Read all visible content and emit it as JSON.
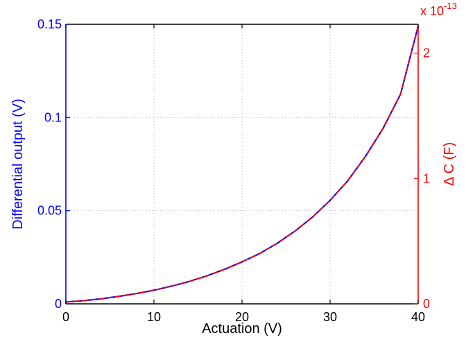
{
  "chart_data": {
    "type": "line",
    "title": "",
    "xlabel": "Actuation (V)",
    "ylabel_left": "Differential output (V)",
    "ylabel_right": "Δ C (F)",
    "right_axis_multiplier": "x 10",
    "right_axis_exponent": "-13",
    "xlim": [
      0,
      40
    ],
    "ylim_left": [
      0,
      0.15
    ],
    "ylim_right": [
      0,
      2.23
    ],
    "x_ticks": [
      0,
      10,
      20,
      30,
      40
    ],
    "x_tick_labels": [
      "0",
      "10",
      "20",
      "30",
      "40"
    ],
    "y_left_ticks": [
      0,
      0.05,
      0.1,
      0.15
    ],
    "y_left_tick_labels": [
      "0",
      "0.05",
      "0.1",
      "0.15"
    ],
    "y_right_ticks": [
      0,
      1,
      2
    ],
    "y_right_tick_labels": [
      "0",
      "1",
      "2"
    ],
    "grid": true,
    "legend": "none",
    "colors": {
      "left_axis": "#0000ff",
      "right_axis": "#ff0000",
      "frame": "#000000"
    },
    "series": [
      {
        "axis": "left",
        "color": "#0000ff",
        "style": "solid",
        "x": [
          0,
          2,
          4,
          6,
          8,
          10,
          12,
          14,
          16,
          18,
          20,
          22,
          24,
          26,
          28,
          30,
          32,
          34,
          36,
          38,
          40
        ],
        "values": [
          0.001,
          0.0017,
          0.0027,
          0.004,
          0.0055,
          0.0073,
          0.0095,
          0.012,
          0.015,
          0.0185,
          0.0225,
          0.027,
          0.0325,
          0.039,
          0.0465,
          0.0555,
          0.066,
          0.079,
          0.094,
          0.1125,
          0.149
        ]
      },
      {
        "axis": "right",
        "color": "#ff0000",
        "style": "dashed",
        "x": [
          0,
          2,
          4,
          6,
          8,
          10,
          12,
          14,
          16,
          18,
          20,
          22,
          24,
          26,
          28,
          30,
          32,
          34,
          36,
          38,
          40
        ],
        "values": [
          0.015,
          0.025,
          0.04,
          0.06,
          0.082,
          0.108,
          0.141,
          0.178,
          0.223,
          0.275,
          0.334,
          0.401,
          0.483,
          0.58,
          0.691,
          0.825,
          0.981,
          1.174,
          1.397,
          1.672,
          2.215
        ]
      }
    ]
  }
}
